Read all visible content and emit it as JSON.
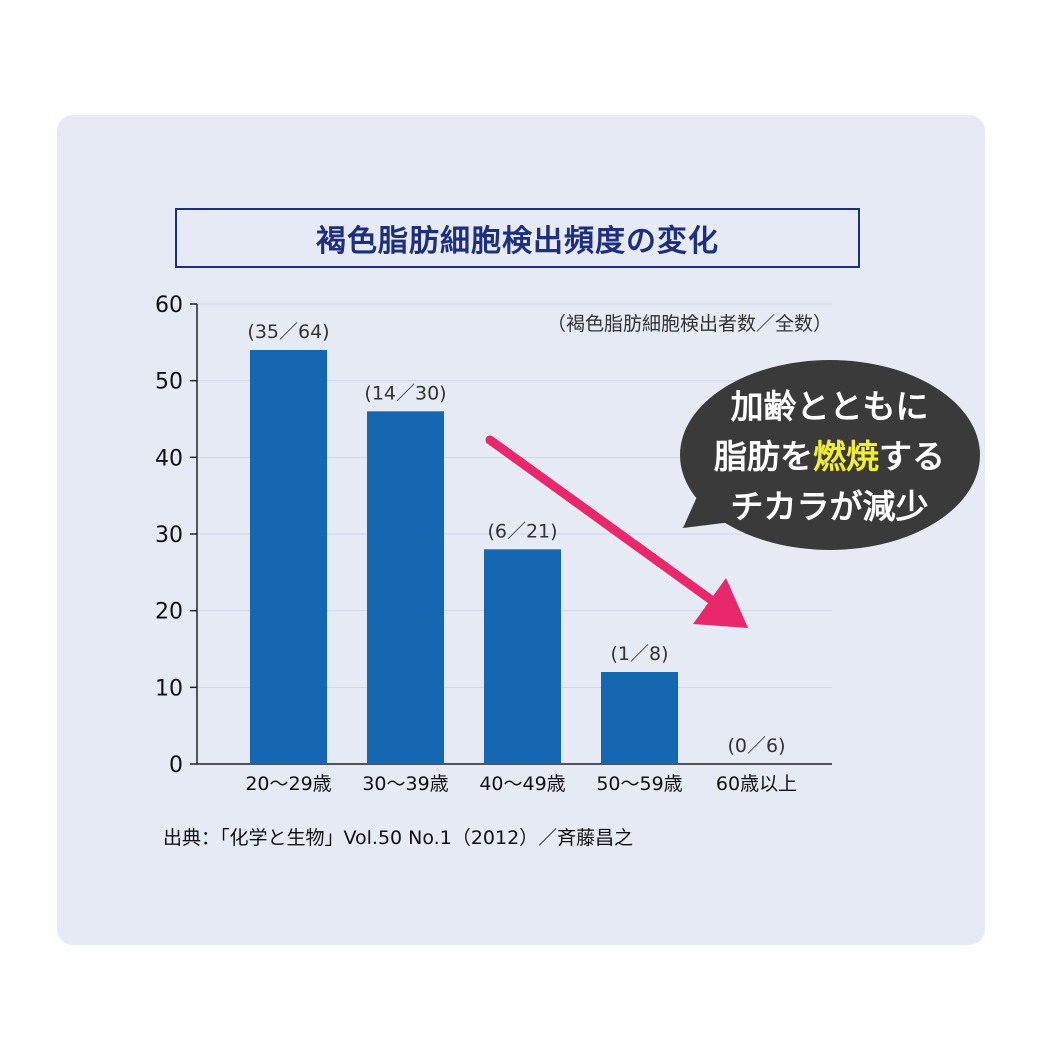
{
  "chart_data": {
    "type": "bar",
    "title": "褐色脂肪細胞検出頻度の変化",
    "categories": [
      "20〜29歳",
      "30〜39歳",
      "40〜49歳",
      "50〜59歳",
      "60歳以上"
    ],
    "values": [
      54,
      46,
      28,
      12,
      0
    ],
    "data_labels": [
      "(35／64)",
      "(14／30)",
      "(6／21)",
      "(1／8)",
      "(0／6)"
    ],
    "ylim": [
      0,
      60
    ],
    "yticks": [
      0,
      10,
      20,
      30,
      40,
      50,
      60
    ],
    "unit_note": "（褐色脂肪細胞検出者数／全数）",
    "bar_color": "#1467b0",
    "grid": true,
    "legend": "none"
  },
  "callout": {
    "line1": "加齢とともに",
    "line2_a": "脂肪を",
    "line2_highlight": "燃焼",
    "line2_b": "する",
    "line3": "チカラが減少"
  },
  "source": "出典：「化学と生物」Vol.50 No.1（2012）／斉藤昌之",
  "colors": {
    "title": "#1e2f7e",
    "arrow": "#e8286a",
    "bubble": "#3a3a3a",
    "highlight": "#f2ee34",
    "panel": "#e6eaf5"
  }
}
